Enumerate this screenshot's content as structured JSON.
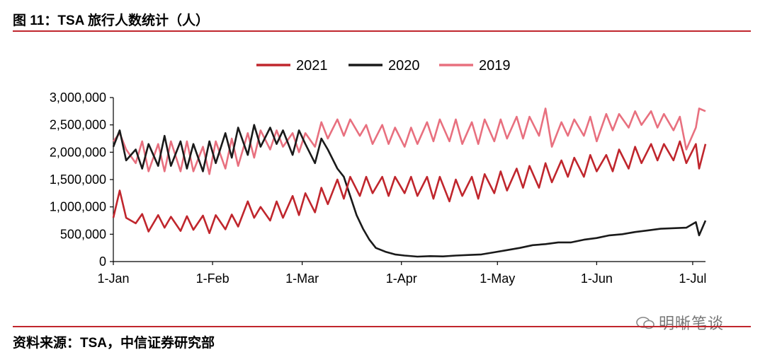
{
  "figure": {
    "title": "图 11：TSA 旅行人数统计（人）",
    "source": "资料来源：TSA，中信证券研究部",
    "watermark": "明晰笔谈",
    "colors": {
      "rule": "#c0262d"
    }
  },
  "chart_data": {
    "type": "line",
    "title": "",
    "xlabel": "",
    "ylabel": "",
    "x_ticks": [
      "1-Jan",
      "1-Feb",
      "1-Mar",
      "1-Apr",
      "1-May",
      "1-Jun",
      "1-Jul"
    ],
    "x_tick_days": [
      1,
      32,
      60,
      91,
      121,
      152,
      182
    ],
    "xlim_days": [
      1,
      186
    ],
    "ylim": [
      0,
      3000000
    ],
    "y_ticks": [
      0,
      500000,
      1000000,
      1500000,
      2000000,
      2500000,
      3000000
    ],
    "y_tick_labels": [
      "0",
      "500,000",
      "1,000,000",
      "1,500,000",
      "2,000,000",
      "2,500,000",
      "3,000,000"
    ],
    "legend_position": "top-center",
    "grid": false,
    "series": [
      {
        "name": "2021",
        "color": "#c0262d",
        "points": [
          [
            1,
            800000
          ],
          [
            3,
            1300000
          ],
          [
            5,
            800000
          ],
          [
            8,
            700000
          ],
          [
            10,
            870000
          ],
          [
            12,
            550000
          ],
          [
            15,
            850000
          ],
          [
            17,
            620000
          ],
          [
            19,
            820000
          ],
          [
            22,
            560000
          ],
          [
            24,
            830000
          ],
          [
            26,
            580000
          ],
          [
            29,
            840000
          ],
          [
            31,
            520000
          ],
          [
            33,
            850000
          ],
          [
            36,
            590000
          ],
          [
            38,
            860000
          ],
          [
            40,
            640000
          ],
          [
            43,
            1100000
          ],
          [
            45,
            800000
          ],
          [
            47,
            1000000
          ],
          [
            50,
            750000
          ],
          [
            52,
            1100000
          ],
          [
            54,
            800000
          ],
          [
            57,
            1200000
          ],
          [
            59,
            850000
          ],
          [
            61,
            1250000
          ],
          [
            64,
            900000
          ],
          [
            66,
            1350000
          ],
          [
            68,
            1050000
          ],
          [
            71,
            1500000
          ],
          [
            73,
            1150000
          ],
          [
            75,
            1550000
          ],
          [
            78,
            1200000
          ],
          [
            80,
            1550000
          ],
          [
            82,
            1250000
          ],
          [
            85,
            1550000
          ],
          [
            87,
            1200000
          ],
          [
            89,
            1550000
          ],
          [
            92,
            1250000
          ],
          [
            94,
            1550000
          ],
          [
            96,
            1200000
          ],
          [
            99,
            1550000
          ],
          [
            101,
            1150000
          ],
          [
            103,
            1550000
          ],
          [
            106,
            1100000
          ],
          [
            108,
            1500000
          ],
          [
            110,
            1200000
          ],
          [
            113,
            1550000
          ],
          [
            115,
            1150000
          ],
          [
            117,
            1600000
          ],
          [
            120,
            1250000
          ],
          [
            122,
            1650000
          ],
          [
            124,
            1300000
          ],
          [
            127,
            1700000
          ],
          [
            129,
            1350000
          ],
          [
            131,
            1750000
          ],
          [
            134,
            1350000
          ],
          [
            136,
            1800000
          ],
          [
            138,
            1450000
          ],
          [
            141,
            1850000
          ],
          [
            143,
            1550000
          ],
          [
            145,
            1900000
          ],
          [
            148,
            1550000
          ],
          [
            150,
            1950000
          ],
          [
            152,
            1650000
          ],
          [
            155,
            1950000
          ],
          [
            157,
            1650000
          ],
          [
            159,
            2050000
          ],
          [
            162,
            1700000
          ],
          [
            164,
            2100000
          ],
          [
            166,
            1800000
          ],
          [
            169,
            2150000
          ],
          [
            171,
            1850000
          ],
          [
            173,
            2150000
          ],
          [
            176,
            1850000
          ],
          [
            178,
            2200000
          ],
          [
            180,
            1800000
          ],
          [
            183,
            2150000
          ],
          [
            184,
            1700000
          ],
          [
            186,
            2150000
          ]
        ]
      },
      {
        "name": "2020",
        "color": "#1a1a1a",
        "points": [
          [
            1,
            2100000
          ],
          [
            3,
            2400000
          ],
          [
            5,
            1850000
          ],
          [
            8,
            2050000
          ],
          [
            10,
            1700000
          ],
          [
            12,
            2150000
          ],
          [
            15,
            1750000
          ],
          [
            17,
            2300000
          ],
          [
            19,
            1750000
          ],
          [
            22,
            2200000
          ],
          [
            24,
            1700000
          ],
          [
            26,
            2150000
          ],
          [
            29,
            1650000
          ],
          [
            31,
            2200000
          ],
          [
            33,
            1800000
          ],
          [
            36,
            2350000
          ],
          [
            38,
            1900000
          ],
          [
            40,
            2450000
          ],
          [
            43,
            1950000
          ],
          [
            45,
            2500000
          ],
          [
            47,
            2100000
          ],
          [
            50,
            2450000
          ],
          [
            52,
            2150000
          ],
          [
            54,
            2400000
          ],
          [
            57,
            1950000
          ],
          [
            59,
            2400000
          ],
          [
            61,
            2150000
          ],
          [
            64,
            1800000
          ],
          [
            66,
            2250000
          ],
          [
            68,
            2050000
          ],
          [
            71,
            1700000
          ],
          [
            73,
            1550000
          ],
          [
            75,
            1200000
          ],
          [
            77,
            850000
          ],
          [
            79,
            600000
          ],
          [
            81,
            400000
          ],
          [
            83,
            250000
          ],
          [
            86,
            180000
          ],
          [
            89,
            130000
          ],
          [
            92,
            110000
          ],
          [
            96,
            90000
          ],
          [
            100,
            100000
          ],
          [
            104,
            95000
          ],
          [
            108,
            110000
          ],
          [
            112,
            120000
          ],
          [
            116,
            130000
          ],
          [
            120,
            170000
          ],
          [
            124,
            210000
          ],
          [
            128,
            250000
          ],
          [
            132,
            300000
          ],
          [
            136,
            320000
          ],
          [
            140,
            350000
          ],
          [
            144,
            350000
          ],
          [
            148,
            400000
          ],
          [
            152,
            430000
          ],
          [
            156,
            480000
          ],
          [
            160,
            500000
          ],
          [
            164,
            540000
          ],
          [
            168,
            570000
          ],
          [
            172,
            600000
          ],
          [
            176,
            610000
          ],
          [
            180,
            620000
          ],
          [
            183,
            720000
          ],
          [
            184,
            480000
          ],
          [
            186,
            750000
          ]
        ]
      },
      {
        "name": "2019",
        "color": "#e8707f",
        "points": [
          [
            1,
            2200000
          ],
          [
            3,
            2350000
          ],
          [
            5,
            2050000
          ],
          [
            8,
            1800000
          ],
          [
            10,
            2200000
          ],
          [
            12,
            1650000
          ],
          [
            15,
            2150000
          ],
          [
            17,
            1650000
          ],
          [
            19,
            2200000
          ],
          [
            22,
            1650000
          ],
          [
            24,
            2200000
          ],
          [
            26,
            1650000
          ],
          [
            29,
            2100000
          ],
          [
            31,
            1600000
          ],
          [
            33,
            2200000
          ],
          [
            36,
            1700000
          ],
          [
            38,
            2250000
          ],
          [
            40,
            1750000
          ],
          [
            43,
            2350000
          ],
          [
            45,
            1900000
          ],
          [
            47,
            2400000
          ],
          [
            50,
            2050000
          ],
          [
            52,
            2400000
          ],
          [
            54,
            2100000
          ],
          [
            57,
            2350000
          ],
          [
            59,
            2000000
          ],
          [
            61,
            2350000
          ],
          [
            64,
            2100000
          ],
          [
            66,
            2550000
          ],
          [
            68,
            2250000
          ],
          [
            71,
            2600000
          ],
          [
            73,
            2300000
          ],
          [
            75,
            2600000
          ],
          [
            78,
            2300000
          ],
          [
            80,
            2500000
          ],
          [
            82,
            2150000
          ],
          [
            85,
            2500000
          ],
          [
            87,
            2150000
          ],
          [
            89,
            2450000
          ],
          [
            92,
            2100000
          ],
          [
            94,
            2450000
          ],
          [
            96,
            2150000
          ],
          [
            99,
            2550000
          ],
          [
            101,
            2200000
          ],
          [
            103,
            2600000
          ],
          [
            106,
            2200000
          ],
          [
            108,
            2600000
          ],
          [
            110,
            2150000
          ],
          [
            113,
            2550000
          ],
          [
            115,
            2150000
          ],
          [
            117,
            2600000
          ],
          [
            120,
            2200000
          ],
          [
            122,
            2600000
          ],
          [
            124,
            2250000
          ],
          [
            127,
            2650000
          ],
          [
            129,
            2250000
          ],
          [
            131,
            2650000
          ],
          [
            134,
            2300000
          ],
          [
            136,
            2800000
          ],
          [
            138,
            2100000
          ],
          [
            141,
            2550000
          ],
          [
            143,
            2300000
          ],
          [
            145,
            2600000
          ],
          [
            148,
            2300000
          ],
          [
            150,
            2650000
          ],
          [
            152,
            2200000
          ],
          [
            155,
            2700000
          ],
          [
            157,
            2400000
          ],
          [
            159,
            2700000
          ],
          [
            162,
            2450000
          ],
          [
            164,
            2750000
          ],
          [
            166,
            2500000
          ],
          [
            169,
            2750000
          ],
          [
            171,
            2450000
          ],
          [
            173,
            2700000
          ],
          [
            176,
            2400000
          ],
          [
            178,
            2650000
          ],
          [
            180,
            2050000
          ],
          [
            183,
            2450000
          ],
          [
            184,
            2800000
          ],
          [
            186,
            2750000
          ]
        ]
      }
    ]
  }
}
